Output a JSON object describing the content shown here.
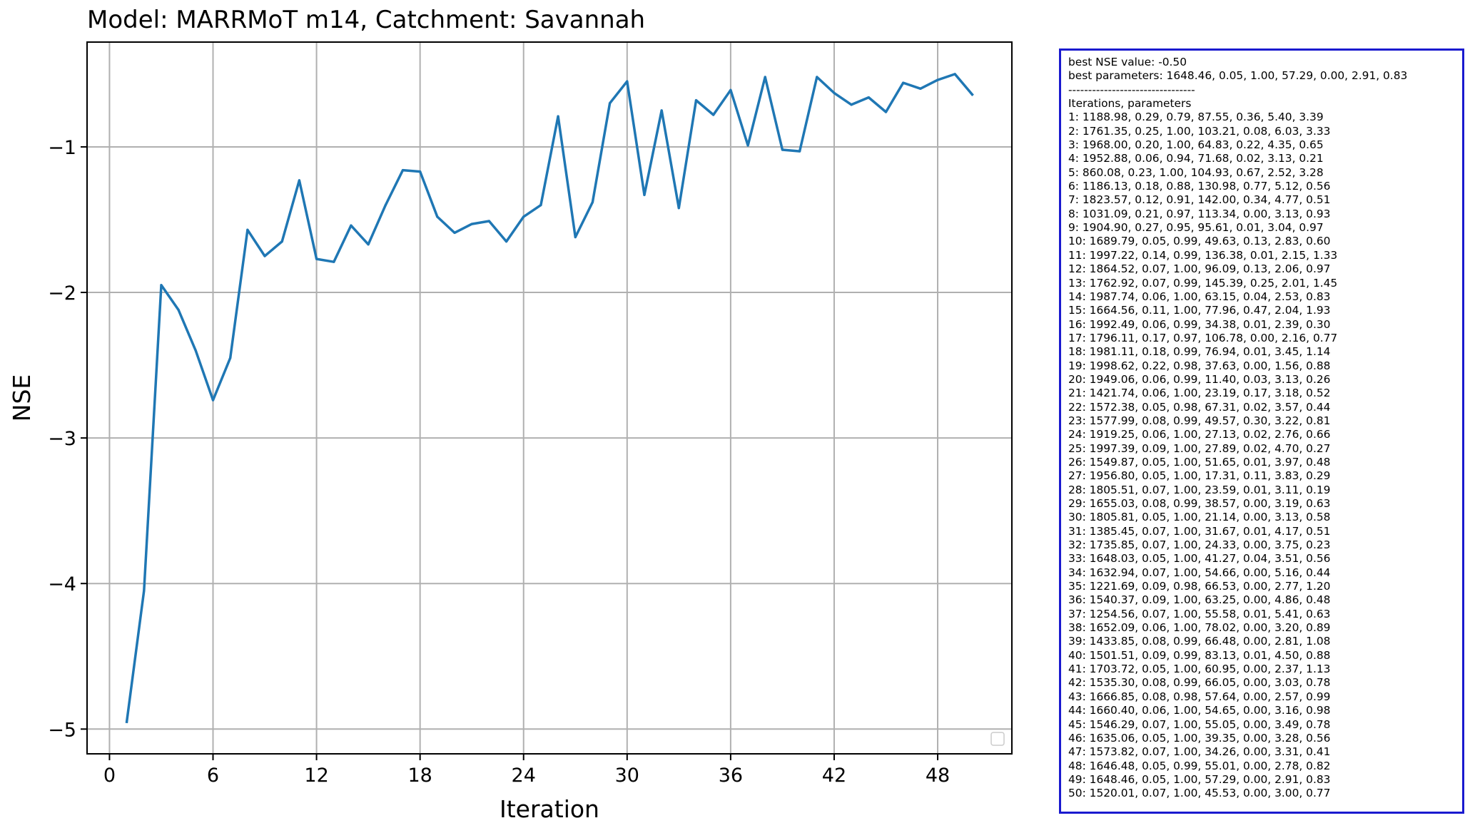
{
  "chart_data": {
    "type": "line",
    "title": "Model: MARRMoT m14, Catchment: Savannah",
    "xlabel": "Iteration",
    "ylabel": "NSE",
    "xlim": [
      -1.3,
      52.3
    ],
    "ylim": [
      -5.17,
      -0.28
    ],
    "xticks": [
      0,
      6,
      12,
      18,
      24,
      30,
      36,
      42,
      48
    ],
    "yticks": [
      -5,
      -4,
      -3,
      -2,
      -1
    ],
    "ytick_labels": [
      "−5",
      "−4",
      "−3",
      "−2",
      "−1"
    ],
    "grid": true,
    "legend": "lower-right (empty)",
    "line_color": "#1f77b4",
    "x": [
      1,
      2,
      3,
      4,
      5,
      6,
      7,
      8,
      9,
      10,
      11,
      12,
      13,
      14,
      15,
      16,
      17,
      18,
      19,
      20,
      21,
      22,
      23,
      24,
      25,
      26,
      27,
      28,
      29,
      30,
      31,
      32,
      33,
      34,
      35,
      36,
      37,
      38,
      39,
      40,
      41,
      42,
      43,
      44,
      45,
      46,
      47,
      48,
      49,
      50
    ],
    "y": [
      -4.95,
      -4.05,
      -1.95,
      -2.12,
      -2.4,
      -2.74,
      -2.45,
      -1.57,
      -1.75,
      -1.65,
      -1.23,
      -1.77,
      -1.79,
      -1.54,
      -1.67,
      -1.4,
      -1.16,
      -1.17,
      -1.48,
      -1.59,
      -1.53,
      -1.51,
      -1.65,
      -1.48,
      -1.4,
      -0.79,
      -1.62,
      -1.38,
      -0.7,
      -0.55,
      -1.33,
      -0.75,
      -1.42,
      -0.68,
      -0.78,
      -0.61,
      -0.99,
      -0.52,
      -1.02,
      -1.03,
      -0.52,
      -0.63,
      -0.71,
      -0.66,
      -0.76,
      -0.56,
      -0.6,
      -0.54,
      -0.5,
      -0.64
    ]
  },
  "info_box": {
    "border_color": "#1a1acf",
    "lines": [
      "best NSE value: -0.50",
      "best parameters: 1648.46, 0.05, 1.00, 57.29, 0.00, 2.91, 0.83",
      "--------------------------------",
      "Iterations, parameters",
      "1: 1188.98, 0.29, 0.79, 87.55, 0.36, 5.40, 3.39",
      "2: 1761.35, 0.25, 1.00, 103.21, 0.08, 6.03, 3.33",
      "3: 1968.00, 0.20, 1.00, 64.83, 0.22, 4.35, 0.65",
      "4: 1952.88, 0.06, 0.94, 71.68, 0.02, 3.13, 0.21",
      "5: 860.08, 0.23, 1.00, 104.93, 0.67, 2.52, 3.28",
      "6: 1186.13, 0.18, 0.88, 130.98, 0.77, 5.12, 0.56",
      "7: 1823.57, 0.12, 0.91, 142.00, 0.34, 4.77, 0.51",
      "8: 1031.09, 0.21, 0.97, 113.34, 0.00, 3.13, 0.93",
      "9: 1904.90, 0.27, 0.95, 95.61, 0.01, 3.04, 0.97",
      "10: 1689.79, 0.05, 0.99, 49.63, 0.13, 2.83, 0.60",
      "11: 1997.22, 0.14, 0.99, 136.38, 0.01, 2.15, 1.33",
      "12: 1864.52, 0.07, 1.00, 96.09, 0.13, 2.06, 0.97",
      "13: 1762.92, 0.07, 0.99, 145.39, 0.25, 2.01, 1.45",
      "14: 1987.74, 0.06, 1.00, 63.15, 0.04, 2.53, 0.83",
      "15: 1664.56, 0.11, 1.00, 77.96, 0.47, 2.04, 1.93",
      "16: 1992.49, 0.06, 0.99, 34.38, 0.01, 2.39, 0.30",
      "17: 1796.11, 0.17, 0.97, 106.78, 0.00, 2.16, 0.77",
      "18: 1981.11, 0.18, 0.99, 76.94, 0.01, 3.45, 1.14",
      "19: 1998.62, 0.22, 0.98, 37.63, 0.00, 1.56, 0.88",
      "20: 1949.06, 0.06, 0.99, 11.40, 0.03, 3.13, 0.26",
      "21: 1421.74, 0.06, 1.00, 23.19, 0.17, 3.18, 0.52",
      "22: 1572.38, 0.05, 0.98, 67.31, 0.02, 3.57, 0.44",
      "23: 1577.99, 0.08, 0.99, 49.57, 0.30, 3.22, 0.81",
      "24: 1919.25, 0.06, 1.00, 27.13, 0.02, 2.76, 0.66",
      "25: 1997.39, 0.09, 1.00, 27.89, 0.02, 4.70, 0.27",
      "26: 1549.87, 0.05, 1.00, 51.65, 0.01, 3.97, 0.48",
      "27: 1956.80, 0.05, 1.00, 17.31, 0.11, 3.83, 0.29",
      "28: 1805.51, 0.07, 1.00, 23.59, 0.01, 3.11, 0.19",
      "29: 1655.03, 0.08, 0.99, 38.57, 0.00, 3.19, 0.63",
      "30: 1805.81, 0.05, 1.00, 21.14, 0.00, 3.13, 0.58",
      "31: 1385.45, 0.07, 1.00, 31.67, 0.01, 4.17, 0.51",
      "32: 1735.85, 0.07, 1.00, 24.33, 0.00, 3.75, 0.23",
      "33: 1648.03, 0.05, 1.00, 41.27, 0.04, 3.51, 0.56",
      "34: 1632.94, 0.07, 1.00, 54.66, 0.00, 5.16, 0.44",
      "35: 1221.69, 0.09, 0.98, 66.53, 0.00, 2.77, 1.20",
      "36: 1540.37, 0.09, 1.00, 63.25, 0.00, 4.86, 0.48",
      "37: 1254.56, 0.07, 1.00, 55.58, 0.01, 5.41, 0.63",
      "38: 1652.09, 0.06, 1.00, 78.02, 0.00, 3.20, 0.89",
      "39: 1433.85, 0.08, 0.99, 66.48, 0.00, 2.81, 1.08",
      "40: 1501.51, 0.09, 0.99, 83.13, 0.01, 4.50, 0.88",
      "41: 1703.72, 0.05, 1.00, 60.95, 0.00, 2.37, 1.13",
      "42: 1535.30, 0.08, 0.99, 66.05, 0.00, 3.03, 0.78",
      "43: 1666.85, 0.08, 0.98, 57.64, 0.00, 2.57, 0.99",
      "44: 1660.40, 0.06, 1.00, 54.65, 0.00, 3.16, 0.98",
      "45: 1546.29, 0.07, 1.00, 55.05, 0.00, 3.49, 0.78",
      "46: 1635.06, 0.05, 1.00, 39.35, 0.00, 3.28, 0.56",
      "47: 1573.82, 0.07, 1.00, 34.26, 0.00, 3.31, 0.41",
      "48: 1646.48, 0.05, 0.99, 55.01, 0.00, 2.78, 0.82",
      "49: 1648.46, 0.05, 1.00, 57.29, 0.00, 2.91, 0.83",
      "50: 1520.01, 0.07, 1.00, 45.53, 0.00, 3.00, 0.77"
    ]
  }
}
